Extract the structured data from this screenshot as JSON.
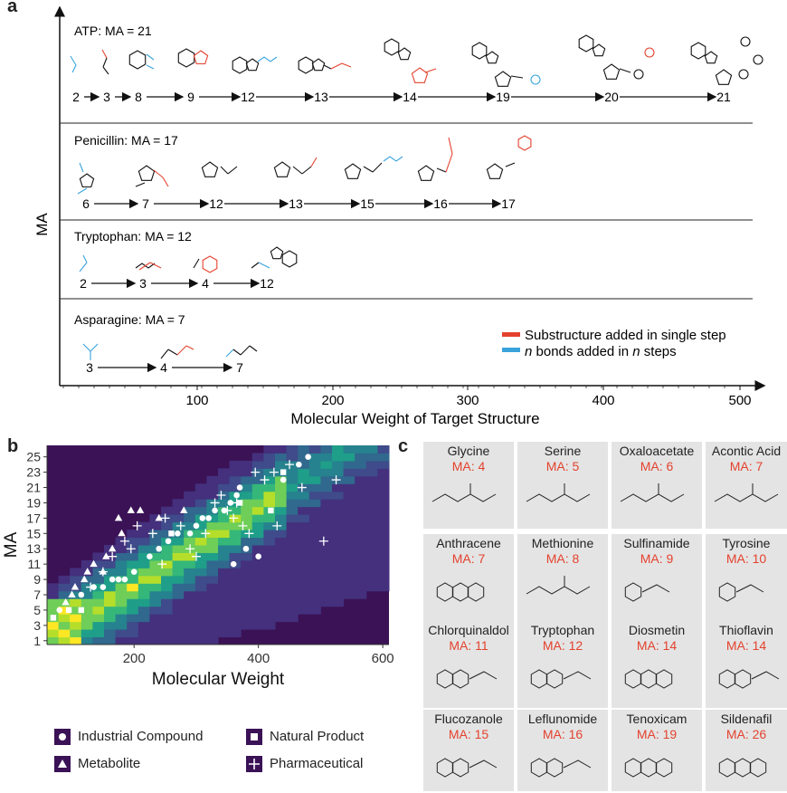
{
  "panel_a": {
    "letter": "a",
    "ylabel": "MA",
    "xlabel": "Molecular Weight of Target Structure",
    "xticks": [
      "100",
      "200",
      "300",
      "400",
      "500"
    ],
    "legend": {
      "red_label": "Substructure added in single step",
      "blue_label_prefix": "n",
      "blue_label_mid": " bonds added in ",
      "blue_label_n": "n",
      "blue_label_suffix": " steps",
      "red_color": "#e4422e",
      "blue_color": "#3aa3dc"
    },
    "rows": [
      {
        "title": "ATP: MA = 21",
        "steps": [
          "2",
          "3",
          "8",
          "9",
          "12",
          "13",
          "14",
          "19",
          "20",
          "21"
        ]
      },
      {
        "title": "Penicillin: MA = 17",
        "steps": [
          "6",
          "7",
          "12",
          "13",
          "15",
          "16",
          "17"
        ]
      },
      {
        "title": "Tryptophan: MA = 12",
        "steps": [
          "2",
          "3",
          "4",
          "12"
        ]
      },
      {
        "title": "Asparagine: MA = 7",
        "steps": [
          "3",
          "4",
          "7"
        ]
      }
    ]
  },
  "panel_b": {
    "letter": "b",
    "legend": {
      "industrial": "Industrial Compound",
      "natural": "Natural Product",
      "metabolite": "Metabolite",
      "pharma": "Pharmaceutical"
    }
  },
  "chart_data": {
    "type": "heatmap",
    "xlabel": "Molecular Weight",
    "ylabel": "MA",
    "xlim": [
      60,
      610
    ],
    "ylim": [
      0.5,
      26.5
    ],
    "xticks": [
      200,
      400,
      600
    ],
    "yticks": [
      1,
      3,
      5,
      7,
      9,
      11,
      13,
      15,
      17,
      19,
      21,
      23,
      25
    ],
    "background_color": "#3b1256",
    "series": [
      {
        "name": "Industrial Compound",
        "marker": "circle",
        "points": [
          [
            80,
            5
          ],
          [
            115,
            7
          ],
          [
            135,
            8
          ],
          [
            150,
            8
          ],
          [
            165,
            9
          ],
          [
            175,
            9
          ],
          [
            185,
            9
          ],
          [
            200,
            10
          ],
          [
            225,
            12
          ],
          [
            240,
            13
          ],
          [
            255,
            14
          ],
          [
            270,
            15
          ],
          [
            290,
            15
          ],
          [
            300,
            16
          ],
          [
            310,
            17
          ],
          [
            320,
            17
          ],
          [
            330,
            18
          ],
          [
            345,
            18
          ],
          [
            355,
            19
          ],
          [
            365,
            20
          ],
          [
            380,
            13
          ],
          [
            400,
            12
          ],
          [
            440,
            22
          ],
          [
            465,
            24
          ],
          [
            480,
            25
          ],
          [
            370,
            21
          ],
          [
            360,
            11
          ]
        ]
      },
      {
        "name": "Metabolite",
        "marker": "triangle",
        "points": [
          [
            90,
            6
          ],
          [
            100,
            7
          ],
          [
            105,
            8
          ],
          [
            120,
            9
          ],
          [
            125,
            10
          ],
          [
            135,
            11
          ],
          [
            150,
            10
          ],
          [
            155,
            12
          ],
          [
            165,
            13
          ],
          [
            175,
            17
          ],
          [
            180,
            15
          ],
          [
            195,
            18
          ],
          [
            210,
            18
          ],
          [
            240,
            17
          ],
          [
            280,
            18
          ]
        ]
      },
      {
        "name": "Natural Product",
        "marker": "square",
        "points": [
          [
            70,
            4
          ],
          [
            95,
            5
          ],
          [
            115,
            5
          ],
          [
            260,
            15
          ],
          [
            370,
            19
          ],
          [
            420,
            18
          ],
          [
            440,
            23
          ]
        ]
      },
      {
        "name": "Pharmaceutical",
        "marker": "plus",
        "points": [
          [
            130,
            8
          ],
          [
            150,
            10
          ],
          [
            165,
            12
          ],
          [
            185,
            14
          ],
          [
            195,
            13
          ],
          [
            205,
            16
          ],
          [
            230,
            15
          ],
          [
            250,
            17
          ],
          [
            275,
            16
          ],
          [
            290,
            13
          ],
          [
            300,
            12
          ],
          [
            315,
            15
          ],
          [
            330,
            19
          ],
          [
            340,
            20
          ],
          [
            350,
            18
          ],
          [
            360,
            17
          ],
          [
            365,
            19
          ],
          [
            375,
            16
          ],
          [
            385,
            15
          ],
          [
            395,
            23
          ],
          [
            410,
            22
          ],
          [
            425,
            23
          ],
          [
            430,
            16
          ],
          [
            450,
            24
          ],
          [
            470,
            21
          ],
          [
            505,
            14
          ],
          [
            525,
            22
          ],
          [
            245,
            11
          ]
        ]
      }
    ]
  },
  "panel_c": {
    "letter": "c",
    "cards": [
      {
        "name": "Glycine",
        "ma": "MA: 4"
      },
      {
        "name": "Serine",
        "ma": "MA: 5"
      },
      {
        "name": "Oxaloacetate",
        "ma": "MA: 6"
      },
      {
        "name": "Acontic Acid",
        "ma": "MA: 7"
      },
      {
        "name": "Anthracene",
        "ma": "MA: 7"
      },
      {
        "name": "Methionine",
        "ma": "MA: 8"
      },
      {
        "name": "Sulfinamide",
        "ma": "MA: 9"
      },
      {
        "name": "Tyrosine",
        "ma": "MA: 10"
      },
      {
        "name": "Chlorquinaldol",
        "ma": "MA: 11"
      },
      {
        "name": "Tryptophan",
        "ma": "MA: 12"
      },
      {
        "name": "Diosmetin",
        "ma": "MA: 14"
      },
      {
        "name": "Thioflavin",
        "ma": "MA: 14"
      },
      {
        "name": "Flucozanole",
        "ma": "MA: 15"
      },
      {
        "name": "Leflunomide",
        "ma": "MA: 16"
      },
      {
        "name": "Tenoxicam",
        "ma": "MA: 19"
      },
      {
        "name": "Sildenafil",
        "ma": "MA: 26"
      }
    ]
  }
}
